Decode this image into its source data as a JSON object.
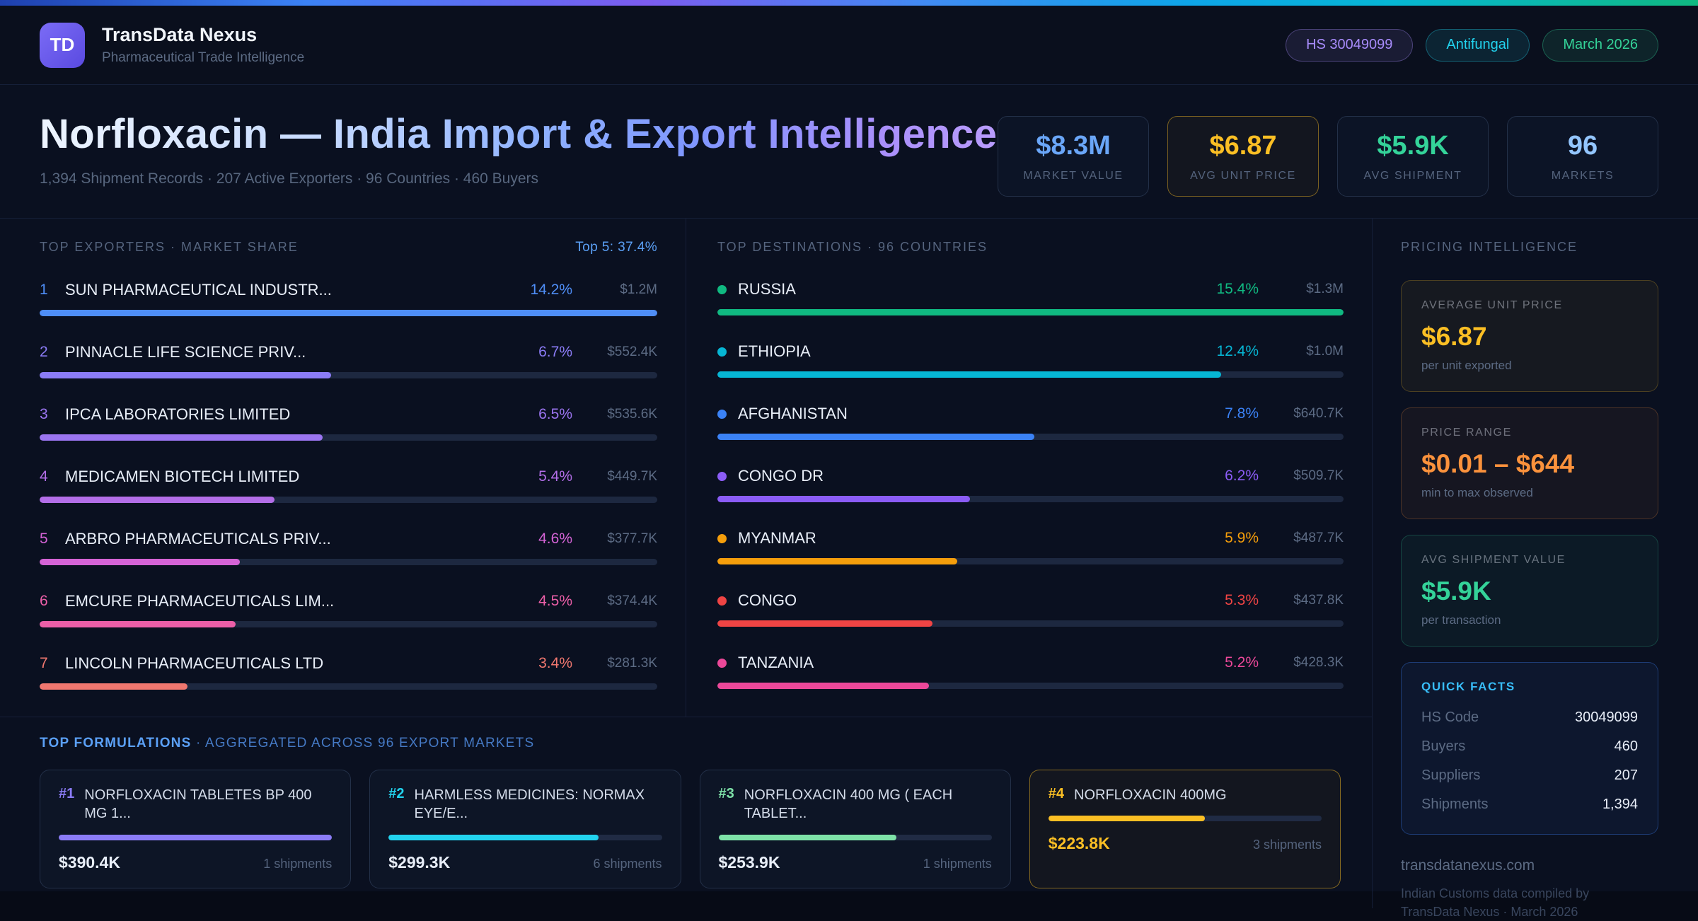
{
  "header": {
    "logo": "TD",
    "app_name": "TransData Nexus",
    "app_subtitle": "Pharmaceutical Trade Intelligence",
    "pills": [
      {
        "label": "HS 30049099",
        "color": "#a78bfa"
      },
      {
        "label": "Antifungal",
        "color": "#22d3ee"
      },
      {
        "label": "March 2026",
        "color": "#34d399"
      }
    ]
  },
  "hero": {
    "title": "Norfloxacin — India Import & Export Intelligence",
    "subtitle": "1,394 Shipment Records · 207 Active Exporters · 96 Countries · 460 Buyers",
    "stats": [
      {
        "value": "$8.3M",
        "label": "MARKET VALUE",
        "color": "#6aa6f8"
      },
      {
        "value": "$6.87",
        "label": "AVG UNIT PRICE",
        "color": "#fbbf24",
        "highlight": true
      },
      {
        "value": "$5.9K",
        "label": "AVG SHIPMENT",
        "color": "#34d399"
      },
      {
        "value": "96",
        "label": "MARKETS",
        "color": "#93c5fd"
      }
    ]
  },
  "exporters": {
    "title": "TOP EXPORTERS · MARKET SHARE",
    "meta": "Top 5: 37.4%",
    "items": [
      {
        "rank": "1",
        "name": "SUN PHARMACEUTICAL INDUSTR...",
        "pct": "14.2%",
        "value": "$1.2M",
        "share": 14.2,
        "color": "#4f8ef7"
      },
      {
        "rank": "2",
        "name": "PINNACLE LIFE SCIENCE PRIV...",
        "pct": "6.7%",
        "value": "$552.4K",
        "share": 6.7,
        "color": "#8b7cf6"
      },
      {
        "rank": "3",
        "name": "IPCA LABORATORIES LIMITED",
        "pct": "6.5%",
        "value": "$535.6K",
        "share": 6.5,
        "color": "#9b75f0"
      },
      {
        "rank": "4",
        "name": "MEDICAMEN BIOTECH LIMITED",
        "pct": "5.4%",
        "value": "$449.7K",
        "share": 5.4,
        "color": "#b36ee8"
      },
      {
        "rank": "5",
        "name": "ARBRO PHARMACEUTICALS PRIV...",
        "pct": "4.6%",
        "value": "$377.7K",
        "share": 4.6,
        "color": "#d563d6"
      },
      {
        "rank": "6",
        "name": "EMCURE PHARMACEUTICALS LIM...",
        "pct": "4.5%",
        "value": "$374.4K",
        "share": 4.5,
        "color": "#ec5fa8"
      },
      {
        "rank": "7",
        "name": "LINCOLN PHARMACEUTICALS LTD",
        "pct": "3.4%",
        "value": "$281.3K",
        "share": 3.4,
        "color": "#f0776f"
      }
    ]
  },
  "destinations": {
    "title": "TOP DESTINATIONS · 96 COUNTRIES",
    "items": [
      {
        "name": "RUSSIA",
        "pct": "15.4%",
        "value": "$1.3M",
        "share": 15.4,
        "color": "#10b981"
      },
      {
        "name": "ETHIOPIA",
        "pct": "12.4%",
        "value": "$1.0M",
        "share": 12.4,
        "color": "#06b6d4"
      },
      {
        "name": "AFGHANISTAN",
        "pct": "7.8%",
        "value": "$640.7K",
        "share": 7.8,
        "color": "#3b82f6"
      },
      {
        "name": "CONGO DR",
        "pct": "6.2%",
        "value": "$509.7K",
        "share": 6.2,
        "color": "#8b5cf6"
      },
      {
        "name": "MYANMAR",
        "pct": "5.9%",
        "value": "$487.7K",
        "share": 5.9,
        "color": "#f59e0b"
      },
      {
        "name": "CONGO",
        "pct": "5.3%",
        "value": "$437.8K",
        "share": 5.3,
        "color": "#ef4444"
      },
      {
        "name": "TANZANIA",
        "pct": "5.2%",
        "value": "$428.3K",
        "share": 5.2,
        "color": "#ec4899"
      }
    ]
  },
  "pricing": {
    "title": "PRICING INTELLIGENCE",
    "cards": [
      {
        "label": "AVERAGE UNIT PRICE",
        "value": "$6.87",
        "note": "per unit exported",
        "color": "#fbbf24"
      },
      {
        "label": "PRICE RANGE",
        "value": "$0.01 – $644",
        "note": "min to max observed",
        "color": "#fb923c"
      },
      {
        "label": "AVG SHIPMENT VALUE",
        "value": "$5.9K",
        "note": "per transaction",
        "color": "#34d399"
      }
    ],
    "quick_facts": {
      "title": "QUICK FACTS",
      "rows": [
        {
          "label": "HS Code",
          "value": "30049099"
        },
        {
          "label": "Buyers",
          "value": "460"
        },
        {
          "label": "Suppliers",
          "value": "207"
        },
        {
          "label": "Shipments",
          "value": "1,394"
        }
      ]
    },
    "footer_site": "transdatanexus.com",
    "footer_note": "Indian Customs data compiled by TransData Nexus · March 2026"
  },
  "formulations": {
    "title_primary": "TOP FORMULATIONS",
    "title_secondary": "· AGGREGATED ACROSS 96 EXPORT MARKETS",
    "items": [
      {
        "rank": "#1",
        "name": "NORFLOXACIN TABLETES BP 400 MG 1...",
        "value": "$390.4K",
        "shipments": "1 shipments",
        "share": 390.4,
        "color": "#8b7cf6"
      },
      {
        "rank": "#2",
        "name": "HARMLESS MEDICINES: NORMAX EYE/E...",
        "value": "$299.3K",
        "shipments": "6 shipments",
        "share": 299.3,
        "color": "#22d3ee"
      },
      {
        "rank": "#3",
        "name": "NORFLOXACIN 400 MG ( EACH TABLET...",
        "value": "$253.9K",
        "shipments": "1 shipments",
        "share": 253.9,
        "color": "#7ee2a8"
      },
      {
        "rank": "#4",
        "name": "NORFLOXACIN 400MG",
        "value": "$223.8K",
        "shipments": "3 shipments",
        "share": 223.8,
        "color": "#fbbf24",
        "highlight": true
      }
    ]
  }
}
